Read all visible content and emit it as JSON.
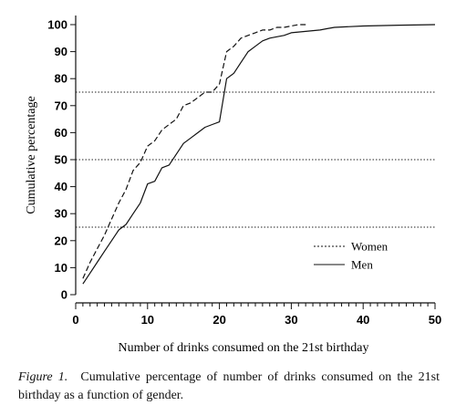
{
  "chart_data": {
    "type": "line",
    "xlabel": "Number of drinks consumed on the 21st birthday",
    "ylabel": "Cumulative percentage",
    "xlim": [
      0,
      50
    ],
    "ylim": [
      0,
      100
    ],
    "xticks": [
      0,
      10,
      20,
      30,
      40,
      50
    ],
    "yticks": [
      0,
      10,
      20,
      30,
      40,
      50,
      60,
      70,
      80,
      90,
      100
    ],
    "reference_lines": [
      25,
      50,
      75
    ],
    "legend_position": "bottom-right",
    "series": [
      {
        "name": "Women",
        "style": "dashed",
        "x": [
          1,
          2,
          3,
          4,
          5,
          6,
          7,
          8,
          9,
          10,
          11,
          12,
          13,
          14,
          15,
          16,
          17,
          18,
          19,
          20,
          21,
          22,
          23,
          24,
          25,
          26,
          27,
          28,
          29,
          30,
          31,
          32
        ],
        "y": [
          6,
          12,
          17,
          22,
          28,
          34,
          39,
          46,
          49,
          55,
          57,
          61,
          63,
          65,
          70,
          71,
          73,
          75,
          75,
          78,
          90,
          92,
          95,
          96,
          97,
          98,
          98,
          99,
          99,
          99.5,
          100,
          100
        ]
      },
      {
        "name": "Men",
        "style": "solid",
        "x": [
          1,
          2,
          3,
          4,
          5,
          6,
          7,
          8,
          9,
          10,
          11,
          12,
          13,
          14,
          15,
          16,
          17,
          18,
          19,
          20,
          21,
          22,
          23,
          24,
          25,
          26,
          27,
          28,
          29,
          30,
          32,
          34,
          35,
          36,
          40,
          45,
          50
        ],
        "y": [
          4,
          8,
          12,
          16,
          20,
          24,
          26,
          30,
          34,
          41,
          42,
          47,
          48,
          52,
          56,
          58,
          60,
          62,
          63,
          64,
          80,
          82,
          86,
          90,
          92,
          94,
          95,
          95.5,
          96,
          97,
          97.5,
          98,
          98.5,
          99,
          99.5,
          99.8,
          100
        ]
      }
    ]
  },
  "caption": {
    "figure_label": "Figure 1.",
    "text": "Cumulative percentage of number of drinks consumed on the 21st birthday as a function of gender."
  }
}
